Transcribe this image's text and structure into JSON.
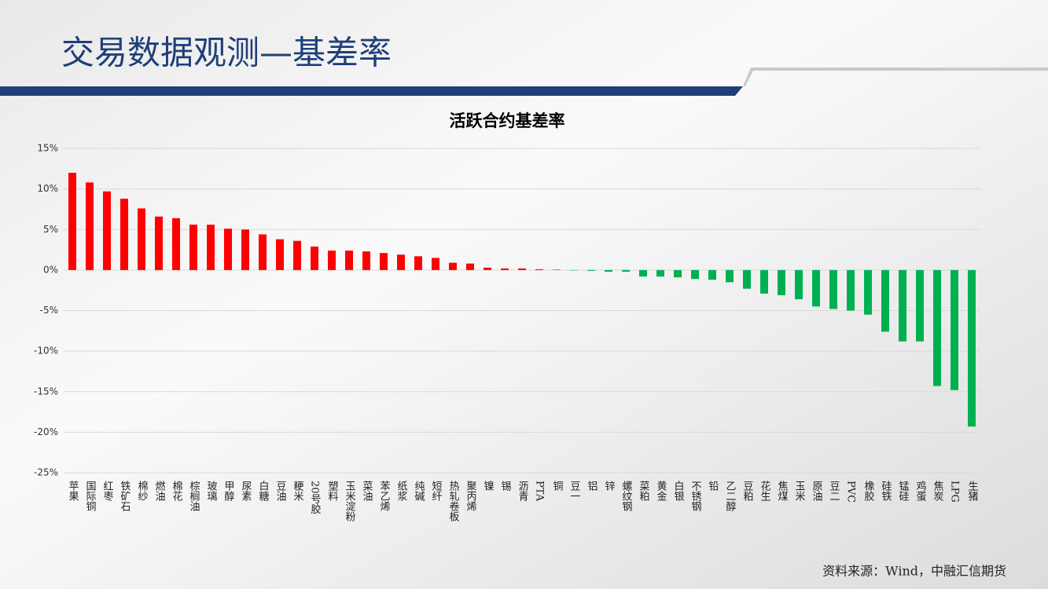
{
  "header": {
    "title": "交易数据观测—基差率"
  },
  "chart_data": {
    "type": "bar",
    "title": "活跃合约基差率",
    "categories": [
      "苹果",
      "国际铜",
      "红枣",
      "铁矿石",
      "棉纱",
      "燃油",
      "棉花",
      "棕榈油",
      "玻璃",
      "甲醇",
      "尿素",
      "白糖",
      "豆油",
      "粳米",
      "20号胶",
      "塑料",
      "玉米淀粉",
      "菜油",
      "苯乙烯",
      "纸浆",
      "纯碱",
      "短纤",
      "热轧卷板",
      "聚丙烯",
      "镍",
      "锡",
      "沥青",
      "PTA",
      "铜",
      "豆一",
      "铝",
      "锌",
      "螺纹钢",
      "菜粕",
      "黄金",
      "白银",
      "不锈钢",
      "铅",
      "乙二醇",
      "豆粕",
      "花生",
      "焦煤",
      "玉米",
      "原油",
      "豆二",
      "PVC",
      "橡胶",
      "硅铁",
      "锰硅",
      "鸡蛋",
      "焦炭",
      "LPG",
      "生猪"
    ],
    "values": [
      12.0,
      10.8,
      9.7,
      8.8,
      7.6,
      6.6,
      6.4,
      5.6,
      5.6,
      5.1,
      5.0,
      4.4,
      3.8,
      3.6,
      2.9,
      2.4,
      2.4,
      2.3,
      2.1,
      1.9,
      1.7,
      1.5,
      0.9,
      0.8,
      0.3,
      0.2,
      0.2,
      0.1,
      0.05,
      -0.05,
      -0.1,
      -0.2,
      -0.2,
      -0.8,
      -0.8,
      -0.9,
      -1.1,
      -1.2,
      -1.5,
      -2.3,
      -2.9,
      -3.1,
      -3.6,
      -4.5,
      -4.8,
      -5.0,
      -5.5,
      -7.6,
      -8.8,
      -8.8,
      -14.3,
      -14.8,
      -19.3
    ],
    "positive_color": "#ff0000",
    "negative_color": "#00b050",
    "ylim": [
      -25,
      15
    ],
    "yticks": [
      {
        "value": -25,
        "label": "-25%"
      },
      {
        "value": -20,
        "label": "-20%"
      },
      {
        "value": -15,
        "label": "-15%"
      },
      {
        "value": -10,
        "label": "-10%"
      },
      {
        "value": -5,
        "label": "-5%"
      },
      {
        "value": 0,
        "label": "0%"
      },
      {
        "value": 5,
        "label": "5%"
      },
      {
        "value": 10,
        "label": "10%"
      },
      {
        "value": 15,
        "label": "15%"
      }
    ],
    "grid": true
  },
  "footer": {
    "source": "资料来源：Wind，中融汇信期货"
  }
}
